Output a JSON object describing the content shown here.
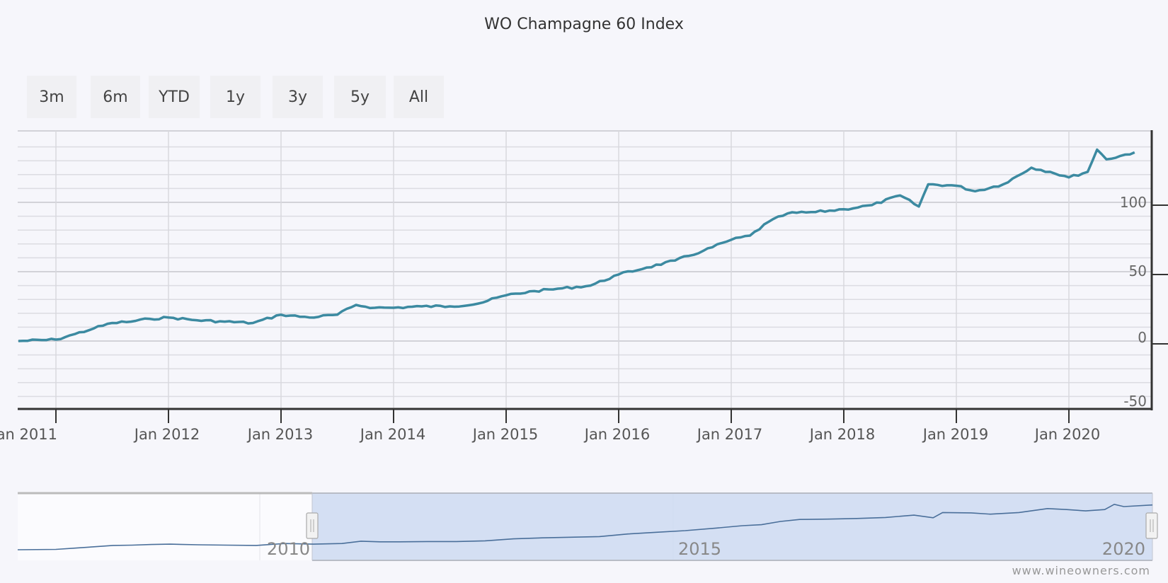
{
  "header": {
    "title": "WO Champagne 60 Index"
  },
  "range_selector": {
    "buttons": [
      {
        "label": "3m"
      },
      {
        "label": "6m"
      },
      {
        "label": "YTD"
      },
      {
        "label": "1y"
      },
      {
        "label": "3y"
      },
      {
        "label": "5y"
      },
      {
        "label": "All"
      }
    ]
  },
  "y_axis": {
    "ticks": [
      "100",
      "50",
      "0",
      "-50"
    ]
  },
  "x_axis": {
    "ticks": [
      "Jan 2011",
      "Jan 2012",
      "Jan 2013",
      "Jan 2014",
      "Jan 2015",
      "Jan 2016",
      "Jan 2017",
      "Jan 2018",
      "Jan 2019",
      "Jan 2020"
    ]
  },
  "navigator": {
    "labels": [
      "2010",
      "2015",
      "2020"
    ]
  },
  "credits": "www.wineowners.com",
  "colors": {
    "line": "#3c8aa1",
    "navigator_line": "#4a6f9a",
    "navigator_mask": "#cfdcf2",
    "grid": "#dcdce2",
    "axis": "#333333"
  },
  "chart_data": {
    "type": "line",
    "title": "WO Champagne 60 Index",
    "xlabel": "",
    "ylabel": "",
    "ylim": [
      -50,
      148
    ],
    "y_ticks": [
      -50,
      0,
      50,
      100
    ],
    "grid": true,
    "legend": "none",
    "x": [
      "2010-09",
      "2011-01",
      "2011-03",
      "2011-05",
      "2011-07",
      "2011-09",
      "2011-11",
      "2012-01",
      "2012-04",
      "2012-07",
      "2012-10",
      "2013-01",
      "2013-04",
      "2013-07",
      "2013-09",
      "2013-11",
      "2014-01",
      "2014-04",
      "2014-07",
      "2014-10",
      "2015-01",
      "2015-04",
      "2015-07",
      "2015-10",
      "2016-01",
      "2016-04",
      "2016-07",
      "2016-10",
      "2017-01",
      "2017-03",
      "2017-05",
      "2017-07",
      "2017-10",
      "2018-01",
      "2018-04",
      "2018-07",
      "2018-09",
      "2018-10",
      "2019-01",
      "2019-03",
      "2019-06",
      "2019-09",
      "2019-11",
      "2020-01",
      "2020-03",
      "2020-04",
      "2020-05",
      "2020-08"
    ],
    "series": [
      {
        "name": "WO Champagne 60 Index",
        "values": [
          0,
          1,
          5,
          9,
          13,
          14,
          16,
          17,
          15,
          14,
          13,
          19,
          17,
          19,
          26,
          24,
          24,
          25,
          25,
          27,
          33,
          36,
          38,
          40,
          48,
          53,
          58,
          65,
          73,
          76,
          86,
          92,
          93,
          95,
          98,
          105,
          97,
          113,
          112,
          108,
          113,
          125,
          122,
          118,
          122,
          138,
          131,
          136
        ]
      }
    ],
    "navigator": {
      "range_start": "2010-09",
      "range_end": "2020-08",
      "selected_start": "2011-01",
      "selected_end": "2020-08"
    }
  }
}
